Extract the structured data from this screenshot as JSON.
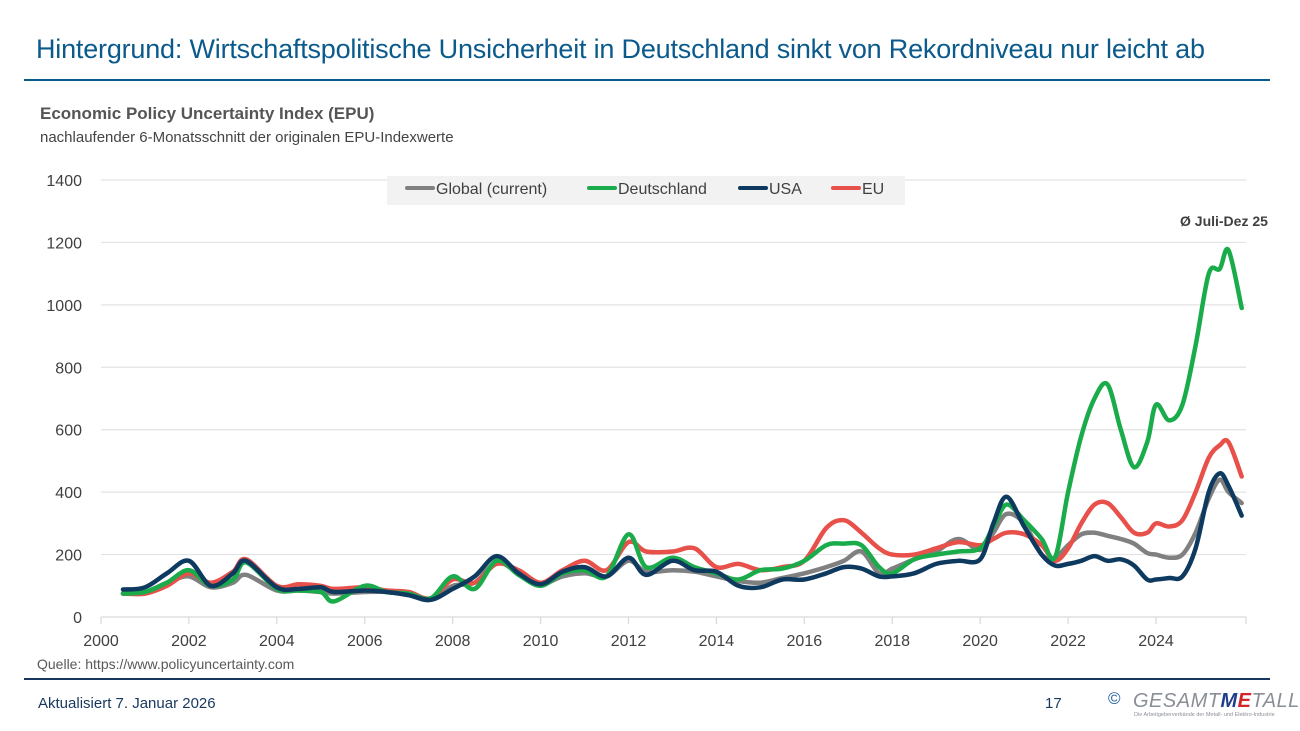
{
  "slide": {
    "title": "Hintergrund: Wirtschaftspolitische Unsicherheit in Deutschland sinkt von Rekordniveau nur leicht ab",
    "source": "Quelle: https://www.policyuncertainty.com",
    "updated": "Aktualisiert 7. Januar 2026",
    "page_number": "17",
    "logo": {
      "copyright": "©",
      "text_prefix": "GESAMT",
      "text_m": "M",
      "text_e": "E",
      "text_suffix": "TALL",
      "tagline": "Die Arbeitgeberverbände der Metall- und Elektro-Industrie"
    }
  },
  "chart_data": {
    "type": "line",
    "title": "Economic Policy Uncertainty Index (EPU)",
    "subtitle": "nachlaufender 6-Monatsschnitt der originalen EPU-Indexwerte",
    "xlabel": "",
    "ylabel": "",
    "xlim": [
      2000,
      2026
    ],
    "ylim": [
      0,
      1400
    ],
    "yticks": [
      0,
      200,
      400,
      600,
      800,
      1000,
      1200,
      1400
    ],
    "ytick_labels": [
      "0",
      "200",
      "400",
      "600",
      "800",
      "1000",
      "1200",
      "1400"
    ],
    "xticks": [
      2000,
      2002,
      2004,
      2006,
      2008,
      2010,
      2012,
      2014,
      2016,
      2018,
      2020,
      2022,
      2024
    ],
    "xtick_labels": [
      "2000",
      "2002",
      "2004",
      "2006",
      "2008",
      "2010",
      "2012",
      "2014",
      "2016",
      "2018",
      "2020",
      "2022",
      "2024"
    ],
    "grid": "horizontal",
    "legend_position": "top-center",
    "annotation": "Ø Juli-Dez 25",
    "x": [
      2000.5,
      2001.0,
      2001.5,
      2002.0,
      2002.5,
      2003.0,
      2003.3,
      2004.0,
      2004.5,
      2005.0,
      2005.3,
      2006.0,
      2006.5,
      2007.0,
      2007.5,
      2008.0,
      2008.5,
      2009.0,
      2009.5,
      2010.0,
      2010.5,
      2011.0,
      2011.5,
      2012.0,
      2012.4,
      2013.0,
      2013.5,
      2014.0,
      2014.5,
      2015.0,
      2015.5,
      2016.0,
      2016.5,
      2016.9,
      2017.3,
      2017.7,
      2018.0,
      2018.5,
      2019.0,
      2019.5,
      2020.0,
      2020.3,
      2020.6,
      2021.0,
      2021.4,
      2021.7,
      2022.0,
      2022.3,
      2022.6,
      2022.9,
      2023.2,
      2023.5,
      2023.8,
      2024.0,
      2024.3,
      2024.6,
      2024.9,
      2025.2,
      2025.45,
      2025.65,
      2025.95
    ],
    "series": [
      {
        "name": "Global (current)",
        "color": "#808080",
        "values": [
          75,
          80,
          110,
          130,
          95,
          110,
          135,
          85,
          85,
          80,
          75,
          80,
          80,
          70,
          55,
          100,
          110,
          175,
          140,
          105,
          130,
          140,
          130,
          180,
          145,
          150,
          145,
          130,
          115,
          110,
          125,
          140,
          160,
          180,
          210,
          140,
          155,
          185,
          210,
          250,
          215,
          270,
          330,
          300,
          200,
          190,
          230,
          265,
          270,
          260,
          250,
          235,
          205,
          200,
          190,
          200,
          270,
          380,
          440,
          400,
          365
        ]
      },
      {
        "name": "Deutschland",
        "color": "#1aab4b",
        "values": [
          75,
          80,
          110,
          150,
          100,
          120,
          175,
          90,
          85,
          80,
          50,
          100,
          80,
          75,
          60,
          130,
          90,
          180,
          135,
          100,
          140,
          150,
          130,
          265,
          160,
          190,
          160,
          140,
          120,
          150,
          155,
          180,
          230,
          235,
          230,
          160,
          140,
          185,
          200,
          210,
          220,
          290,
          360,
          310,
          250,
          190,
          400,
          580,
          700,
          745,
          600,
          480,
          560,
          680,
          630,
          680,
          870,
          1100,
          1115,
          1175,
          990
        ]
      },
      {
        "name": "USA",
        "color": "#0f3a5f",
        "values": [
          88,
          95,
          140,
          180,
          100,
          140,
          180,
          95,
          90,
          95,
          80,
          85,
          80,
          70,
          55,
          90,
          130,
          195,
          140,
          105,
          145,
          160,
          130,
          190,
          135,
          180,
          150,
          145,
          100,
          95,
          120,
          120,
          140,
          160,
          155,
          130,
          130,
          140,
          170,
          180,
          185,
          300,
          385,
          290,
          200,
          165,
          170,
          180,
          195,
          180,
          185,
          165,
          120,
          120,
          125,
          130,
          220,
          400,
          460,
          420,
          325
        ]
      },
      {
        "name": "EU",
        "color": "#e8504a",
        "values": [
          75,
          75,
          100,
          140,
          110,
          145,
          185,
          100,
          105,
          100,
          90,
          95,
          85,
          80,
          60,
          120,
          110,
          170,
          150,
          110,
          150,
          180,
          150,
          240,
          210,
          210,
          220,
          160,
          170,
          150,
          160,
          180,
          285,
          310,
          270,
          220,
          200,
          200,
          220,
          240,
          230,
          250,
          270,
          265,
          230,
          180,
          220,
          300,
          360,
          365,
          320,
          270,
          270,
          300,
          290,
          310,
          400,
          510,
          550,
          560,
          450
        ]
      }
    ]
  }
}
